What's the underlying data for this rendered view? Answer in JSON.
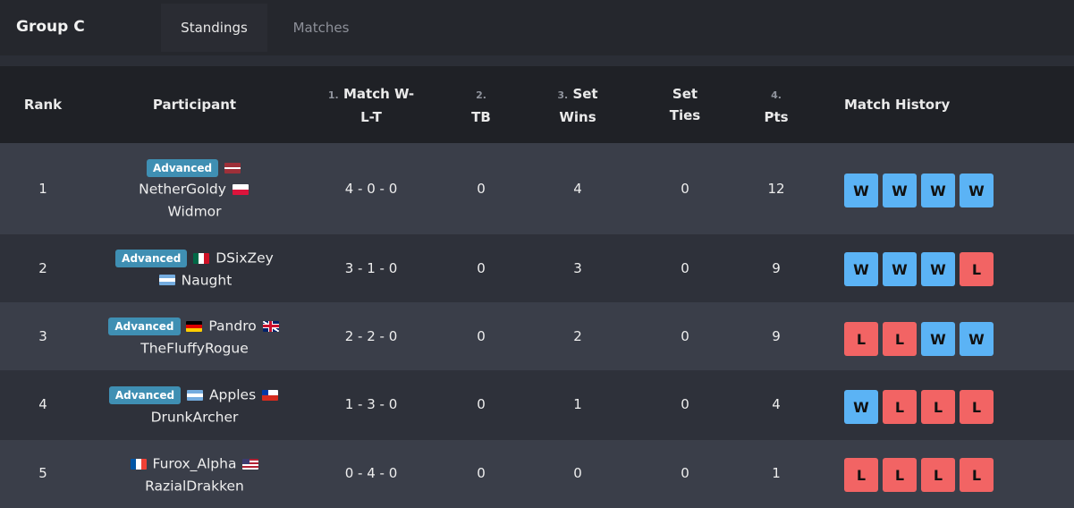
{
  "header": {
    "group_title": "Group C"
  },
  "tabs": [
    {
      "label": "Standings",
      "active": true
    },
    {
      "label": "Matches",
      "active": false
    }
  ],
  "columns": {
    "rank": "Rank",
    "participant": "Participant",
    "match_wlt": {
      "prefix": "1.",
      "line1": "Match W-",
      "line2": "L-T"
    },
    "tb": {
      "prefix": "2.",
      "label": "TB"
    },
    "set_wins": {
      "prefix": "3.",
      "line1": "Set",
      "line2": "Wins"
    },
    "set_ties": {
      "line1": "Set",
      "line2": "Ties"
    },
    "pts": {
      "prefix": "4.",
      "label": "Pts"
    },
    "history": "Match History"
  },
  "colors": {
    "win": "#5bb3f5",
    "loss": "#f26464",
    "badge": "#3f8fb3"
  },
  "rows": [
    {
      "rank": "1",
      "advanced": "Advanced",
      "players": [
        "NetherGoldy",
        "Widmor"
      ],
      "flags": [
        "latvia-flag",
        "poland-flag"
      ],
      "wlt": "4 - 0 - 0",
      "tb": "0",
      "set_wins": "4",
      "set_ties": "0",
      "pts": "12",
      "history": [
        "W",
        "W",
        "W",
        "W"
      ]
    },
    {
      "rank": "2",
      "advanced": "Advanced",
      "players": [
        "DSixZey",
        "Naught"
      ],
      "flags": [
        "mexico-flag",
        "argentina-flag"
      ],
      "wlt": "3 - 1 - 0",
      "tb": "0",
      "set_wins": "3",
      "set_ties": "0",
      "pts": "9",
      "history": [
        "W",
        "W",
        "W",
        "L"
      ]
    },
    {
      "rank": "3",
      "advanced": "Advanced",
      "players": [
        "Pandro",
        "TheFluffyRogue"
      ],
      "flags": [
        "germany-flag",
        "uk-flag"
      ],
      "wlt": "2 - 2 - 0",
      "tb": "0",
      "set_wins": "2",
      "set_ties": "0",
      "pts": "9",
      "history": [
        "L",
        "L",
        "W",
        "W"
      ]
    },
    {
      "rank": "4",
      "advanced": "Advanced",
      "players": [
        "Apples",
        "DrunkArcher"
      ],
      "flags": [
        "argentina-flag",
        "chile-flag"
      ],
      "wlt": "1 - 3 - 0",
      "tb": "0",
      "set_wins": "1",
      "set_ties": "0",
      "pts": "4",
      "history": [
        "W",
        "L",
        "L",
        "L"
      ]
    },
    {
      "rank": "5",
      "advanced": "",
      "players": [
        "Furox_Alpha",
        "RazialDrakken"
      ],
      "flags": [
        "france-flag",
        "usa-flag"
      ],
      "wlt": "0 - 4 - 0",
      "tb": "0",
      "set_wins": "0",
      "set_ties": "0",
      "pts": "1",
      "history": [
        "L",
        "L",
        "L",
        "L"
      ]
    }
  ]
}
